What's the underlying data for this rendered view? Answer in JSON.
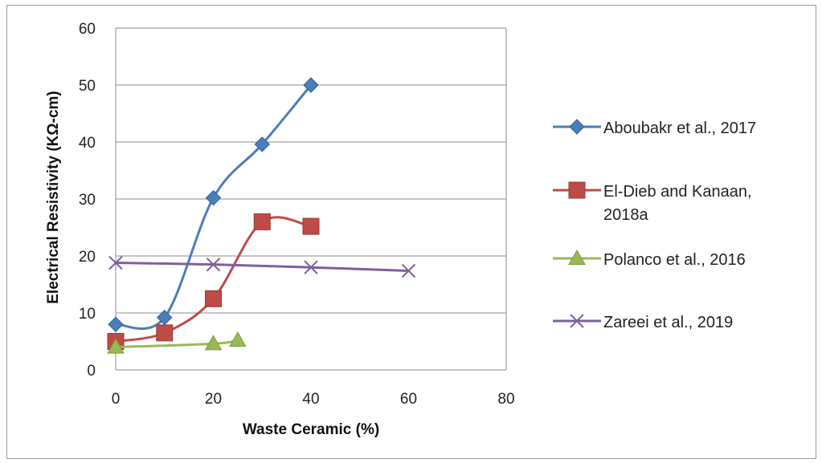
{
  "chart_data": {
    "type": "line",
    "title": "",
    "xlabel": "Waste Ceramic (%)",
    "ylabel": "Electrical Resistivity (KΩ-cm)",
    "xlim": [
      0,
      80
    ],
    "ylim": [
      0,
      60
    ],
    "xticks": [
      0,
      20,
      40,
      60,
      80
    ],
    "yticks": [
      0,
      10,
      20,
      30,
      40,
      50,
      60
    ],
    "grid": "horizontal",
    "legend": "right",
    "series": [
      {
        "name": "Aboubakr et al., 2017",
        "legend_lines": [
          "Aboubakr et al., 2017"
        ],
        "color": "#4a7ebb",
        "marker": "diamond",
        "x": [
          0,
          10,
          20,
          30,
          40
        ],
        "y": [
          8,
          9.2,
          30.2,
          39.6,
          50
        ]
      },
      {
        "name": "El-Dieb and Kanaan, 2018a",
        "legend_lines": [
          "El-Dieb and Kanaan,",
          "2018a"
        ],
        "color": "#be4b48",
        "marker": "square",
        "x": [
          0,
          10,
          20,
          30,
          40
        ],
        "y": [
          5,
          6.5,
          12.5,
          26,
          25.2
        ]
      },
      {
        "name": "Polanco et al., 2016",
        "legend_lines": [
          "Polanco et al., 2016"
        ],
        "color": "#98b954",
        "marker": "triangle",
        "x": [
          0,
          20,
          25
        ],
        "y": [
          4,
          4.6,
          5.2
        ]
      },
      {
        "name": "Zareei et al., 2019",
        "legend_lines": [
          "Zareei et al., 2019"
        ],
        "color": "#7d60a0",
        "marker": "x",
        "x": [
          0,
          20,
          40,
          60
        ],
        "y": [
          18.8,
          18.5,
          18,
          17.4
        ]
      }
    ]
  }
}
